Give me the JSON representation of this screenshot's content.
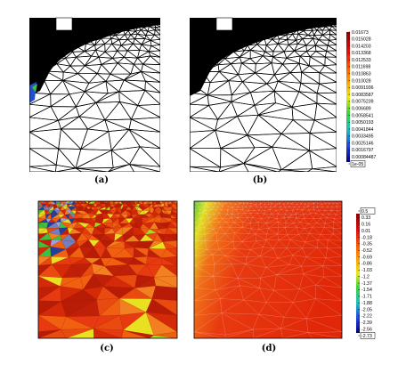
{
  "panels": {
    "a": {
      "caption": "(a)"
    },
    "b": {
      "caption": "(b)"
    },
    "c": {
      "caption": "(c)"
    },
    "d": {
      "caption": "(d)"
    }
  },
  "colorbar_top": {
    "labels": [
      "0.01673",
      "0.015028",
      "0.014203",
      "0.013368",
      "0.012533",
      "0.011698",
      "0.010863",
      "0.010028",
      "0.0091936",
      "0.0083587",
      "0.0075239",
      "0.006689",
      "0.0058541",
      "0.0050193",
      "0.0041844",
      "0.0033495",
      "0.0025146",
      "0.0016797",
      "0.00084487"
    ],
    "bottom_label": "1e-05"
  },
  "colorbar_bottom": {
    "top_label": "0.5",
    "labels": [
      "0.33",
      "0.16",
      "0.01",
      "-0.18",
      "-0.35",
      "-0.52",
      "-0.69",
      "-0.86",
      "-1.03",
      "-1.2",
      "-1.37",
      "-1.54",
      "-1.71",
      "-1.88",
      "-2.05",
      "-2.22",
      "-2.39",
      "-2.56"
    ],
    "bottom_label": "-2.73"
  },
  "colors": {
    "mesh": "#000000",
    "red": "#d42a08",
    "orange": "#f06010",
    "yellow": "#e8e020",
    "green": "#40c020",
    "blue": "#1020c0"
  }
}
